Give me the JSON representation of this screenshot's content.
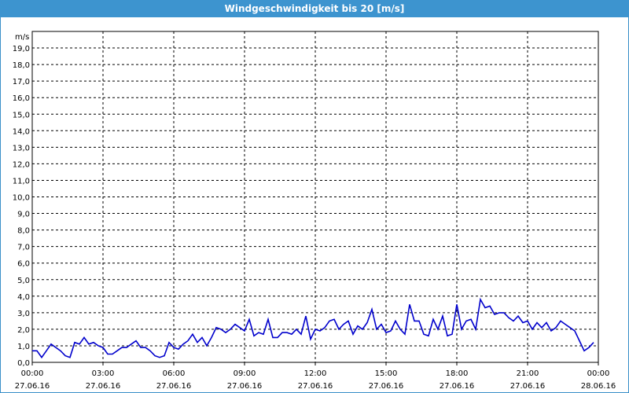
{
  "chart_data": {
    "type": "line",
    "title": "Windgeschwindigkeit bis 20 [m/s]",
    "ylabel": "m/s",
    "ylim": [
      0,
      20
    ],
    "yticks": [
      "0,0",
      "1,0",
      "2,0",
      "3,0",
      "4,0",
      "5,0",
      "6,0",
      "7,0",
      "8,0",
      "9,0",
      "10,0",
      "11,0",
      "12,0",
      "13,0",
      "14,0",
      "15,0",
      "16,0",
      "17,0",
      "18,0",
      "19,0"
    ],
    "xlim": [
      0,
      24
    ],
    "xticks": [
      {
        "time": "00:00",
        "date": "27.06.16"
      },
      {
        "time": "03:00",
        "date": "27.06.16"
      },
      {
        "time": "06:00",
        "date": "27.06.16"
      },
      {
        "time": "09:00",
        "date": "27.06.16"
      },
      {
        "time": "12:00",
        "date": "27.06.16"
      },
      {
        "time": "15:00",
        "date": "27.06.16"
      },
      {
        "time": "18:00",
        "date": "27.06.16"
      },
      {
        "time": "21:00",
        "date": "27.06.16"
      },
      {
        "time": "00:00",
        "date": "28.06.16"
      }
    ],
    "x_unit": "hours",
    "grid": true,
    "line_color": "#0000cc",
    "series": [
      {
        "x": [
          0.0,
          0.2,
          0.4,
          0.6,
          0.8,
          1.0,
          1.2,
          1.4,
          1.6,
          1.8,
          2.0,
          2.2,
          2.4,
          2.6,
          2.8,
          3.0,
          3.2,
          3.4,
          3.6,
          3.8,
          4.0,
          4.2,
          4.4,
          4.6,
          4.8,
          5.0,
          5.2,
          5.4,
          5.6,
          5.8,
          6.0,
          6.2,
          6.4,
          6.6,
          6.8,
          7.0,
          7.2,
          7.4,
          7.6,
          7.8,
          8.0,
          8.2,
          8.4,
          8.6,
          8.8,
          9.0,
          9.2,
          9.4,
          9.6,
          9.8,
          10.0,
          10.2,
          10.4,
          10.6,
          10.8,
          11.0,
          11.2,
          11.4,
          11.6,
          11.8,
          12.0,
          12.2,
          12.4,
          12.6,
          12.8,
          13.0,
          13.2,
          13.4,
          13.6,
          13.8,
          14.0,
          14.2,
          14.4,
          14.6,
          14.8,
          15.0,
          15.2,
          15.4,
          15.6,
          15.8,
          16.0,
          16.2,
          16.4,
          16.6,
          16.8,
          17.0,
          17.2,
          17.4,
          17.6,
          17.8,
          18.0,
          18.2,
          18.4,
          18.6,
          18.8,
          19.0,
          19.2,
          19.4,
          19.6,
          19.8,
          20.0,
          20.2,
          20.4,
          20.6,
          20.8,
          21.0,
          21.2,
          21.4,
          21.6,
          21.8,
          22.0,
          22.2,
          22.4,
          22.6,
          22.8,
          23.0,
          23.2,
          23.4,
          23.6,
          23.8
        ],
        "values": [
          0.7,
          0.7,
          0.3,
          0.7,
          1.1,
          0.9,
          0.7,
          0.4,
          0.3,
          1.2,
          1.1,
          1.5,
          1.1,
          1.2,
          1.0,
          0.9,
          0.5,
          0.5,
          0.7,
          0.9,
          0.9,
          1.1,
          1.3,
          0.9,
          0.9,
          0.7,
          0.4,
          0.3,
          0.4,
          1.2,
          0.9,
          0.8,
          1.1,
          1.3,
          1.7,
          1.2,
          1.5,
          1.0,
          1.5,
          2.1,
          2.0,
          1.8,
          2.0,
          2.3,
          2.1,
          1.9,
          2.6,
          1.6,
          1.8,
          1.7,
          2.6,
          1.5,
          1.5,
          1.8,
          1.8,
          1.7,
          2.0,
          1.7,
          2.8,
          1.4,
          2.0,
          1.9,
          2.1,
          2.5,
          2.6,
          2.0,
          2.3,
          2.5,
          1.7,
          2.2,
          2.0,
          2.4,
          3.2,
          2.0,
          2.3,
          1.8,
          1.9,
          2.5,
          2.0,
          1.7,
          3.5,
          2.5,
          2.5,
          1.7,
          1.6,
          2.6,
          2.0,
          2.8,
          1.6,
          1.7,
          3.5,
          2.0,
          2.5,
          2.6,
          2.0,
          3.8,
          3.3,
          3.4,
          2.9,
          3.0,
          3.0,
          2.7,
          2.5,
          2.8,
          2.4,
          2.5,
          2.0,
          2.4,
          2.1,
          2.4,
          1.9,
          2.1,
          2.5,
          2.3,
          2.1,
          1.9,
          1.3,
          0.7,
          0.9,
          1.2
        ]
      }
    ]
  }
}
